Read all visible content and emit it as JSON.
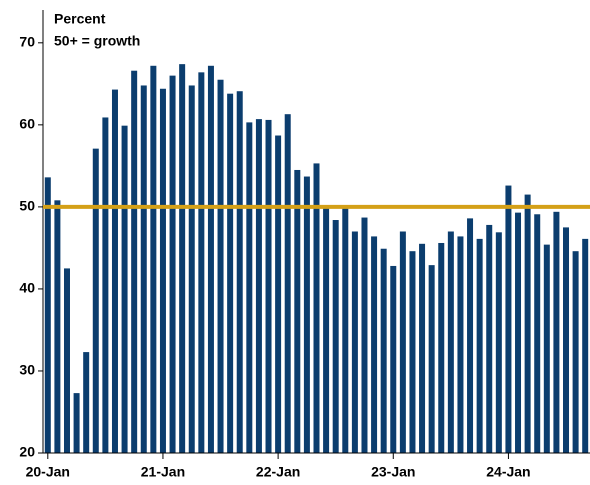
{
  "chart_data": {
    "type": "bar",
    "annotations": [
      "Percent",
      "50+ = growth"
    ],
    "categories": [
      "20-Jan",
      null,
      null,
      null,
      null,
      null,
      null,
      null,
      null,
      null,
      null,
      null,
      "21-Jan",
      null,
      null,
      null,
      null,
      null,
      null,
      null,
      null,
      null,
      null,
      null,
      "22-Jan",
      null,
      null,
      null,
      null,
      null,
      null,
      null,
      null,
      null,
      null,
      null,
      "23-Jan",
      null,
      null,
      null,
      null,
      null,
      null,
      null,
      null,
      null,
      null,
      null,
      "24-Jan",
      null,
      null,
      null,
      null,
      null,
      null,
      null,
      null
    ],
    "values": [
      53.6,
      50.8,
      42.5,
      27.3,
      32.3,
      57.1,
      60.9,
      64.3,
      59.9,
      66.6,
      64.8,
      67.2,
      64.4,
      66.0,
      67.4,
      64.8,
      66.4,
      67.2,
      65.5,
      63.8,
      64.1,
      60.3,
      60.7,
      60.6,
      58.7,
      61.3,
      54.5,
      53.7,
      55.3,
      50.0,
      48.4,
      49.8,
      47.0,
      48.7,
      46.4,
      44.9,
      42.8,
      47.0,
      44.6,
      45.5,
      42.9,
      45.6,
      47.0,
      46.4,
      48.6,
      46.1,
      47.8,
      46.9,
      52.6,
      49.3,
      51.5,
      49.1,
      45.4,
      49.4,
      47.5,
      44.6,
      46.1
    ],
    "color": "#0b3d6e",
    "reference_line": 50,
    "reference_color": "#d4a017",
    "ylim": [
      20,
      74
    ],
    "yticks": [
      20,
      30,
      40,
      50,
      60,
      70
    ]
  }
}
